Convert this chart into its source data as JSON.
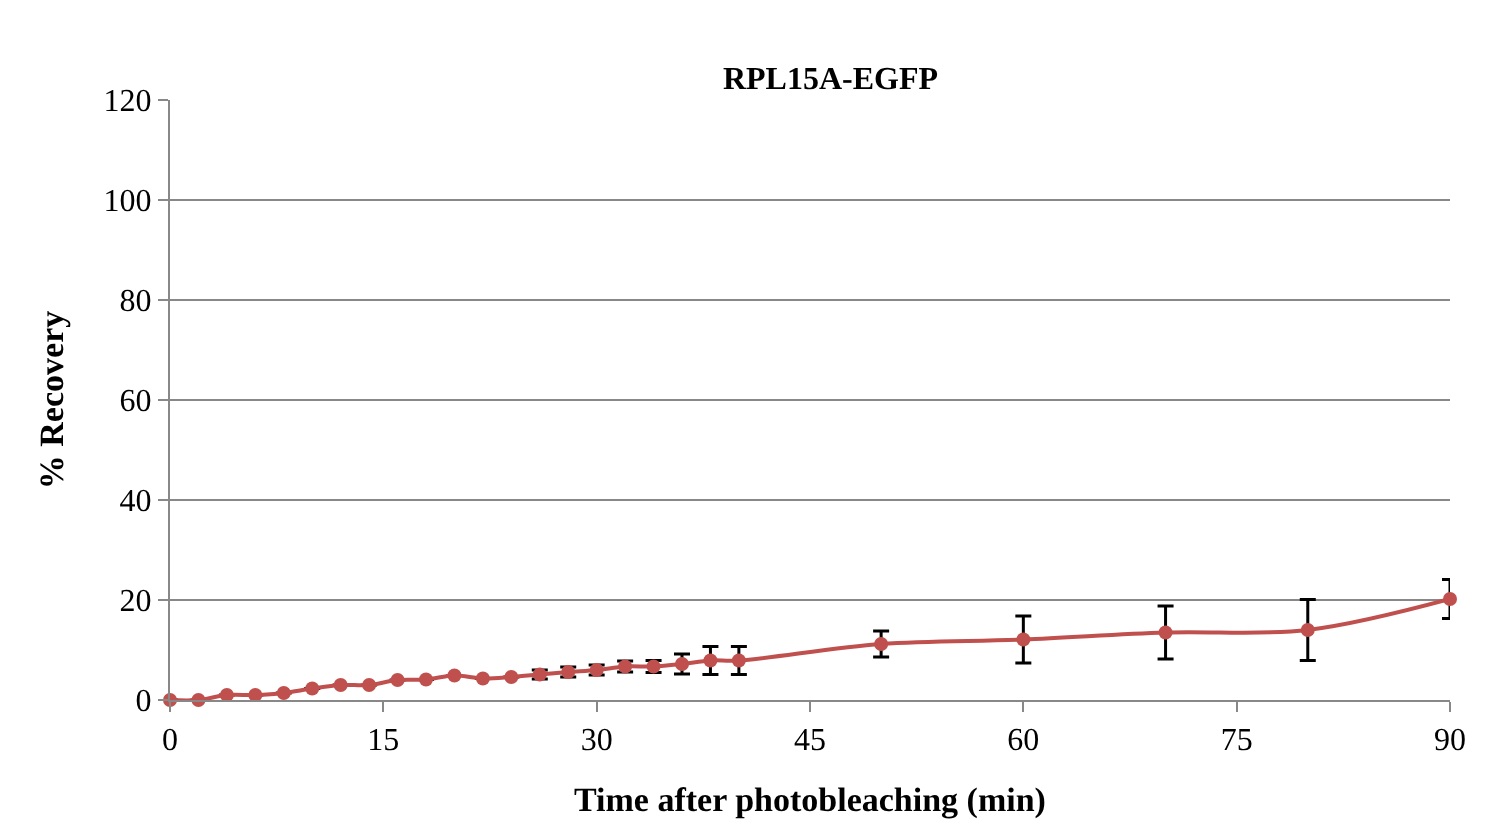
{
  "chart_data": {
    "type": "line",
    "title": "RPL15A-EGFP",
    "xlabel": "Time after photobleaching (min)",
    "ylabel": "% Recovery",
    "x": [
      0,
      2,
      4,
      6,
      8,
      10,
      12,
      14,
      16,
      18,
      20,
      22,
      24,
      26,
      28,
      30,
      32,
      34,
      36,
      38,
      40,
      50,
      60,
      70,
      80,
      90
    ],
    "series": [
      {
        "color": "#c0504d",
        "values": [
          0,
          0,
          1,
          1,
          1.4,
          2.3,
          3,
          3,
          4,
          4.1,
          4.9,
          4.3,
          4.6,
          5.1,
          5.6,
          6,
          6.7,
          6.7,
          7.2,
          7.9,
          7.9,
          11.2,
          12.1,
          13.5,
          14,
          20.2
        ],
        "errors": [
          null,
          null,
          null,
          null,
          null,
          null,
          null,
          null,
          null,
          null,
          null,
          null,
          null,
          0.9,
          1,
          1,
          1.1,
          1.2,
          2,
          2.8,
          2.8,
          2.6,
          4.7,
          5.3,
          6.1,
          3.9
        ]
      }
    ],
    "xlim": [
      0,
      90
    ],
    "xticks": [
      0,
      15,
      30,
      45,
      60,
      75,
      90
    ],
    "ylim": [
      0,
      120
    ],
    "yticks": [
      0,
      20,
      40,
      60,
      80,
      100,
      120
    ],
    "grid": "y",
    "legend": false,
    "marker": "circle",
    "line_style": "solid"
  }
}
